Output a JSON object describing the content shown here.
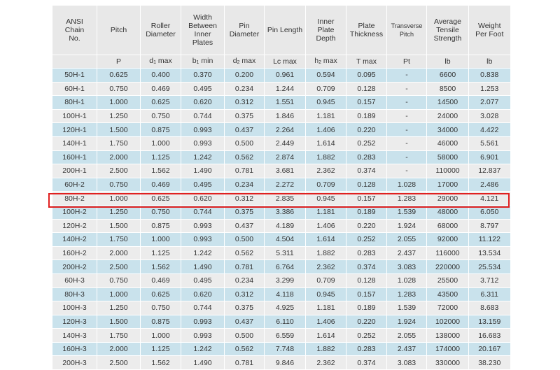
{
  "table": {
    "headers": [
      [
        "ANSI",
        "Chain",
        "No."
      ],
      [
        "Pitch"
      ],
      [
        "Roller",
        "Diameter"
      ],
      [
        "Width",
        "Between",
        "Inner",
        "Plates"
      ],
      [
        "Pin",
        "Diameter"
      ],
      [
        "Pin Length"
      ],
      [
        "Inner",
        "Plate",
        "Depth"
      ],
      [
        "Plate",
        "Thickness"
      ],
      [
        "Transverse",
        "Pitch"
      ],
      [
        "Average",
        "Tensile",
        "Strength"
      ],
      [
        "Weight",
        "Per Foot"
      ]
    ],
    "units": [
      {
        "text": ""
      },
      {
        "text": "P"
      },
      {
        "text": "d",
        "sub": "1",
        "suffix": " max"
      },
      {
        "text": "b",
        "sub": "1",
        "suffix": " min"
      },
      {
        "text": "d",
        "sub": "2",
        "suffix": " max"
      },
      {
        "text": "Lc max"
      },
      {
        "text": "h",
        "sub": "2",
        "suffix": " max"
      },
      {
        "text": "T max"
      },
      {
        "text": "Pt"
      },
      {
        "text": "lb"
      },
      {
        "text": "lb"
      }
    ],
    "rows": [
      [
        "50H-1",
        "0.625",
        "0.400",
        "0.370",
        "0.200",
        "0.961",
        "0.594",
        "0.095",
        "-",
        "6600",
        "0.838"
      ],
      [
        "60H-1",
        "0.750",
        "0.469",
        "0.495",
        "0.234",
        "1.244",
        "0.709",
        "0.128",
        "-",
        "8500",
        "1.253"
      ],
      [
        "80H-1",
        "1.000",
        "0.625",
        "0.620",
        "0.312",
        "1.551",
        "0.945",
        "0.157",
        "-",
        "14500",
        "2.077"
      ],
      [
        "100H-1",
        "1.250",
        "0.750",
        "0.744",
        "0.375",
        "1.846",
        "1.181",
        "0.189",
        "-",
        "24000",
        "3.028"
      ],
      [
        "120H-1",
        "1.500",
        "0.875",
        "0.993",
        "0.437",
        "2.264",
        "1.406",
        "0.220",
        "-",
        "34000",
        "4.422"
      ],
      [
        "140H-1",
        "1.750",
        "1.000",
        "0.993",
        "0.500",
        "2.449",
        "1.614",
        "0.252",
        "-",
        "46000",
        "5.561"
      ],
      [
        "160H-1",
        "2.000",
        "1.125",
        "1.242",
        "0.562",
        "2.874",
        "1.882",
        "0.283",
        "-",
        "58000",
        "6.901"
      ],
      [
        "200H-1",
        "2.500",
        "1.562",
        "1.490",
        "0.781",
        "3.681",
        "2.362",
        "0.374",
        "-",
        "110000",
        "12.837"
      ],
      [
        "60H-2",
        "0.750",
        "0.469",
        "0.495",
        "0.234",
        "2.272",
        "0.709",
        "0.128",
        "1.028",
        "17000",
        "2.486"
      ],
      [
        "80H-2",
        "1.000",
        "0.625",
        "0.620",
        "0.312",
        "2.835",
        "0.945",
        "0.157",
        "1.283",
        "29000",
        "4.121"
      ],
      [
        "100H-2",
        "1.250",
        "0.750",
        "0.744",
        "0.375",
        "3.386",
        "1.181",
        "0.189",
        "1.539",
        "48000",
        "6.050"
      ],
      [
        "120H-2",
        "1.500",
        "0.875",
        "0.993",
        "0.437",
        "4.189",
        "1.406",
        "0.220",
        "1.924",
        "68000",
        "8.797"
      ],
      [
        "140H-2",
        "1.750",
        "1.000",
        "0.993",
        "0.500",
        "4.504",
        "1.614",
        "0.252",
        "2.055",
        "92000",
        "11.122"
      ],
      [
        "160H-2",
        "2.000",
        "1.125",
        "1.242",
        "0.562",
        "5.311",
        "1.882",
        "0.283",
        "2.437",
        "116000",
        "13.534"
      ],
      [
        "200H-2",
        "2.500",
        "1.562",
        "1.490",
        "0.781",
        "6.764",
        "2.362",
        "0.374",
        "3.083",
        "220000",
        "25.534"
      ],
      [
        "60H-3",
        "0.750",
        "0.469",
        "0.495",
        "0.234",
        "3.299",
        "0.709",
        "0.128",
        "1.028",
        "25500",
        "3.712"
      ],
      [
        "80H-3",
        "1.000",
        "0.625",
        "0.620",
        "0.312",
        "4.118",
        "0.945",
        "0.157",
        "1.283",
        "43500",
        "6.311"
      ],
      [
        "100H-3",
        "1.250",
        "0.750",
        "0.744",
        "0.375",
        "4.925",
        "1.181",
        "0.189",
        "1.539",
        "72000",
        "8.683"
      ],
      [
        "120H-3",
        "1.500",
        "0.875",
        "0.993",
        "0.437",
        "6.110",
        "1.406",
        "0.220",
        "1.924",
        "102000",
        "13.159"
      ],
      [
        "140H-3",
        "1.750",
        "1.000",
        "0.993",
        "0.500",
        "6.559",
        "1.614",
        "0.252",
        "2.055",
        "138000",
        "16.683"
      ],
      [
        "160H-3",
        "2.000",
        "1.125",
        "1.242",
        "0.562",
        "7.748",
        "1.882",
        "0.283",
        "2.437",
        "174000",
        "20.167"
      ],
      [
        "200H-3",
        "2.500",
        "1.562",
        "1.490",
        "0.781",
        "9.846",
        "2.362",
        "0.374",
        "3.083",
        "330000",
        "38.230"
      ]
    ],
    "highlighted_row": "100H-2",
    "colors": {
      "header_bg": "#e8e8e8",
      "row_blue": "#c9e2ec",
      "row_gray": "#ececec",
      "highlight_border": "#e02020"
    }
  }
}
